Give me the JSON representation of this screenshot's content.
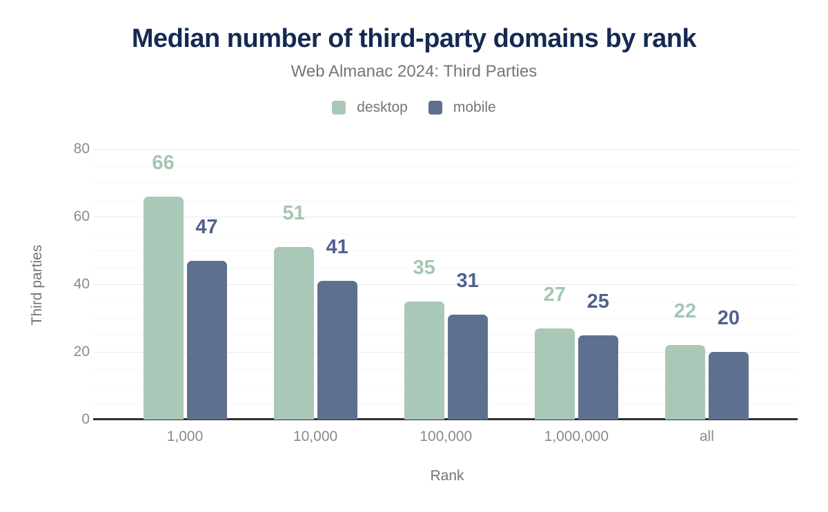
{
  "header": {
    "title": "Median number of third-party domains by rank",
    "subtitle": "Web Almanac 2024: Third Parties"
  },
  "legend": [
    {
      "label": "desktop",
      "color": "#a9c8b7"
    },
    {
      "label": "mobile",
      "color": "#5e7090"
    }
  ],
  "chart_data": {
    "type": "bar",
    "title": "Median number of third-party domains by rank",
    "subtitle": "Web Almanac 2024: Third Parties",
    "categories": [
      "1,000",
      "10,000",
      "100,000",
      "1,000,000",
      "all"
    ],
    "series": [
      {
        "name": "desktop",
        "values": [
          66,
          51,
          35,
          27,
          22
        ],
        "color": "#a9c8b7",
        "label_color": "#a4c6b3"
      },
      {
        "name": "mobile",
        "values": [
          47,
          41,
          31,
          25,
          20
        ],
        "color": "#5e7090",
        "label_color": "#50628a"
      }
    ],
    "xlabel": "Rank",
    "ylabel": "Third parties",
    "ylim": [
      0,
      80
    ],
    "yticks": [
      0,
      20,
      40,
      60,
      80
    ],
    "grid": {
      "major_step": 20,
      "minor_step": 5,
      "grid_on": true
    },
    "legend_position": "top",
    "colors": {
      "title": "#152a52",
      "subtitle": "#757575",
      "axis_text": "#8a8a8a",
      "axis_title": "#6f7578",
      "axis_line": "#2f2f2f",
      "grid_major": "#e8e8e8",
      "grid_minor": "#f6f6f6",
      "background": "#ffffff"
    }
  }
}
